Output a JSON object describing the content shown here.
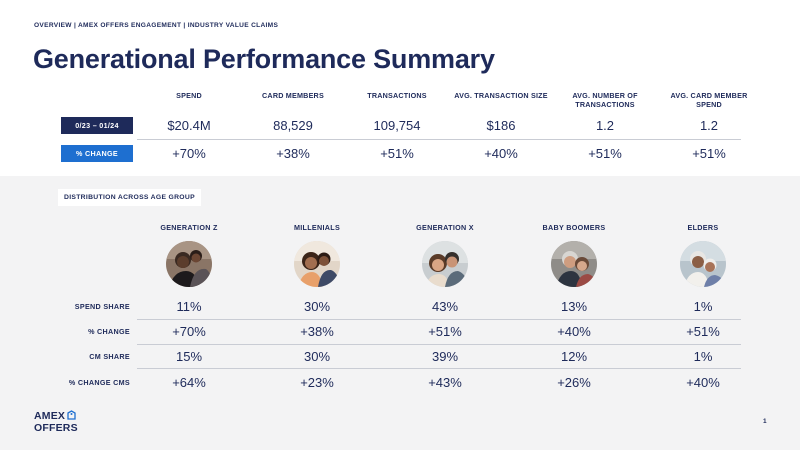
{
  "breadcrumb": "OVERVIEW  |  AMEX OFFERS ENGAGEMENT  |  INDUSTRY VALUE CLAIMS",
  "title": "Generational Performance Summary",
  "summary": {
    "headers": [
      "SPEND",
      "CARD MEMBERS",
      "TRANSACTIONS",
      "AVG. TRANSACTION SIZE",
      "AVG. NUMBER OF TRANSACTIONS",
      "AVG. CARD MEMBER SPEND"
    ],
    "rows": [
      {
        "label": "0/23 – 01/24",
        "values": [
          "$20.4M",
          "88,529",
          "109,754",
          "$186",
          "1.2",
          "1.2"
        ]
      },
      {
        "label": "% CHANGE",
        "values": [
          "+70%",
          "+38%",
          "+51%",
          "+40%",
          "+51%",
          "+51%"
        ]
      }
    ]
  },
  "distribution": {
    "tag": "DISTRIBUTION ACROSS AGE GROUP",
    "groups": [
      {
        "name": "GENERATION Z",
        "photo": "generation-z-photo"
      },
      {
        "name": "MILLENIALS",
        "photo": "millenials-photo"
      },
      {
        "name": "GENERATION X",
        "photo": "generation-x-photo"
      },
      {
        "name": "BABY BOOMERS",
        "photo": "baby-boomers-photo"
      },
      {
        "name": "ELDERS",
        "photo": "elders-photo"
      }
    ],
    "rows": [
      {
        "label": "SPEND SHARE",
        "values": [
          "11%",
          "30%",
          "43%",
          "13%",
          "1%"
        ]
      },
      {
        "label": "% CHANGE",
        "values": [
          "+70%",
          "+38%",
          "+51%",
          "+40%",
          "+51%"
        ]
      },
      {
        "label": "CM SHARE",
        "values": [
          "15%",
          "30%",
          "39%",
          "12%",
          "1%"
        ]
      },
      {
        "label": "% CHANGE CMS",
        "values": [
          "+64%",
          "+23%",
          "+43%",
          "+26%",
          "+40%"
        ]
      }
    ]
  },
  "logo": {
    "line1": "AMEX",
    "line2": "OFFERS",
    "icon": "offer-tag-icon"
  },
  "page_number": "1",
  "colors": {
    "navy": "#1e2a5a",
    "blue": "#1e6fd0",
    "panel": "#f3f3f4",
    "divider": "#c9ccd4"
  }
}
